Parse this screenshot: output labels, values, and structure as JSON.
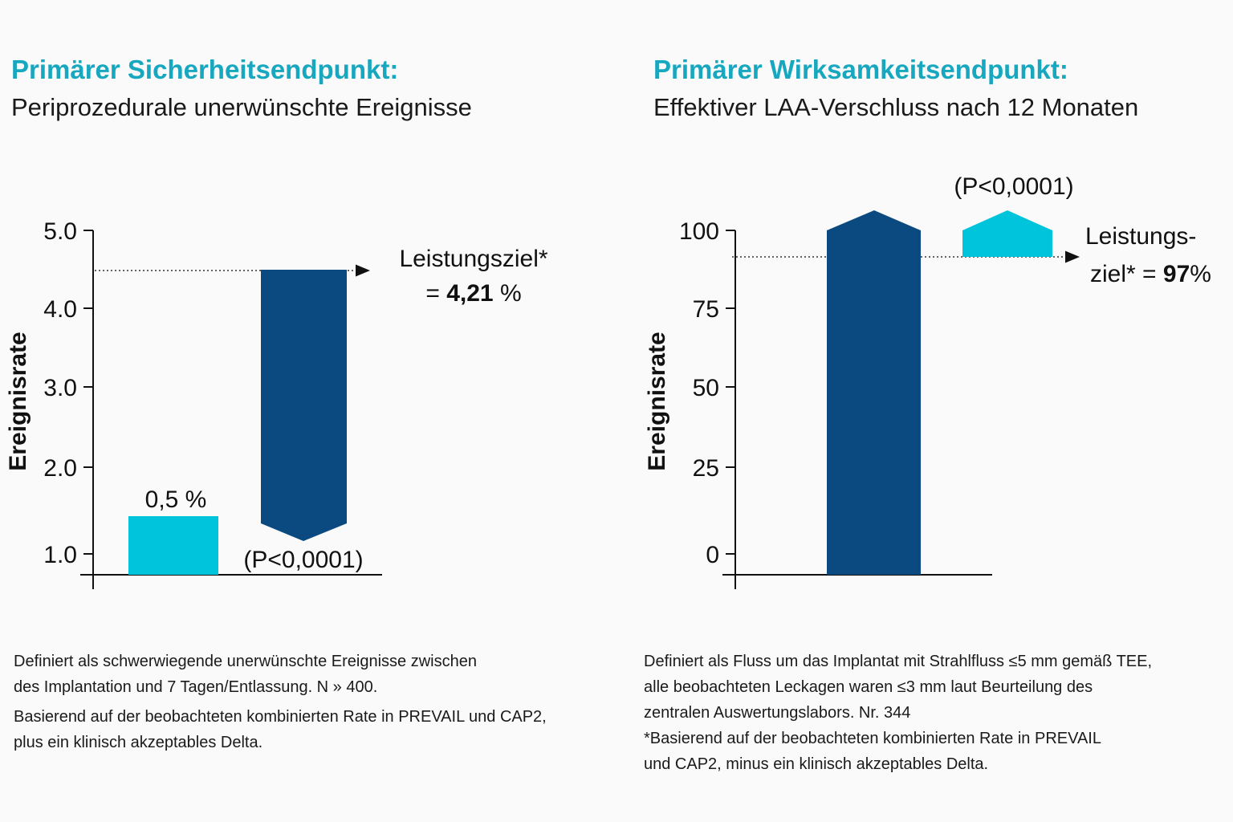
{
  "colors": {
    "title": "#17a7bf",
    "observed_bar": "#00c3dc",
    "goal_bar": "#0a4a80",
    "axis": "#111111"
  },
  "chart_data": [
    {
      "type": "bar",
      "title": "Primärer Sicherheitsendpunkt:",
      "subtitle": "Periprozedurale unerwünschte Ereignisse",
      "ylabel": "Ereignisrate",
      "yticks": [
        "5.0",
        "4.0",
        "3.0",
        "2.0",
        "1.0"
      ],
      "series": [
        {
          "label": "0,5 %",
          "value": 0.5
        },
        {
          "label": "Leistungsziel*",
          "value_label": "= 4,21 %",
          "value_bold": "4,21",
          "value": 4.21
        }
      ],
      "pvalue": "(P<0,0001)",
      "goal_line": true
    },
    {
      "type": "bar",
      "title": "Primärer Wirksamkeitsendpunkt:",
      "subtitle": "Effektiver LAA-Verschluss nach 12 Monaten",
      "ylabel": "Ereignisrate",
      "yticks": [
        "100",
        "75",
        "50",
        "25",
        "0"
      ],
      "series": [
        {
          "value": 100
        },
        {
          "label_line1": "Leistungs-",
          "label_line2": "ziel*",
          "value_bold": "97",
          "value": 97
        }
      ],
      "pvalue": "(P<0,0001)",
      "goal_line": true
    }
  ],
  "notes_left": [
    "Definiert als schwerwiegende unerwünschte Ereignisse zwischen",
    "des Implantation und 7 Tagen/Entlassung. N » 400.",
    "Basierend auf der beobachteten kombinierten Rate in PREVAIL und CAP2,",
    "plus ein klinisch akzeptables Delta."
  ],
  "notes_right": [
    "Definiert als Fluss um das Implantat mit Strahlfluss ≤5 mm gemäß TEE,",
    "alle beobachteten Leckagen waren ≤3 mm laut Beurteilung des",
    "zentralen Auswertungslabors. Nr. 344",
    "*Basierend auf der beobachteten kombinierten Rate in PREVAIL",
    "und CAP2, minus ein klinisch akzeptables Delta."
  ]
}
